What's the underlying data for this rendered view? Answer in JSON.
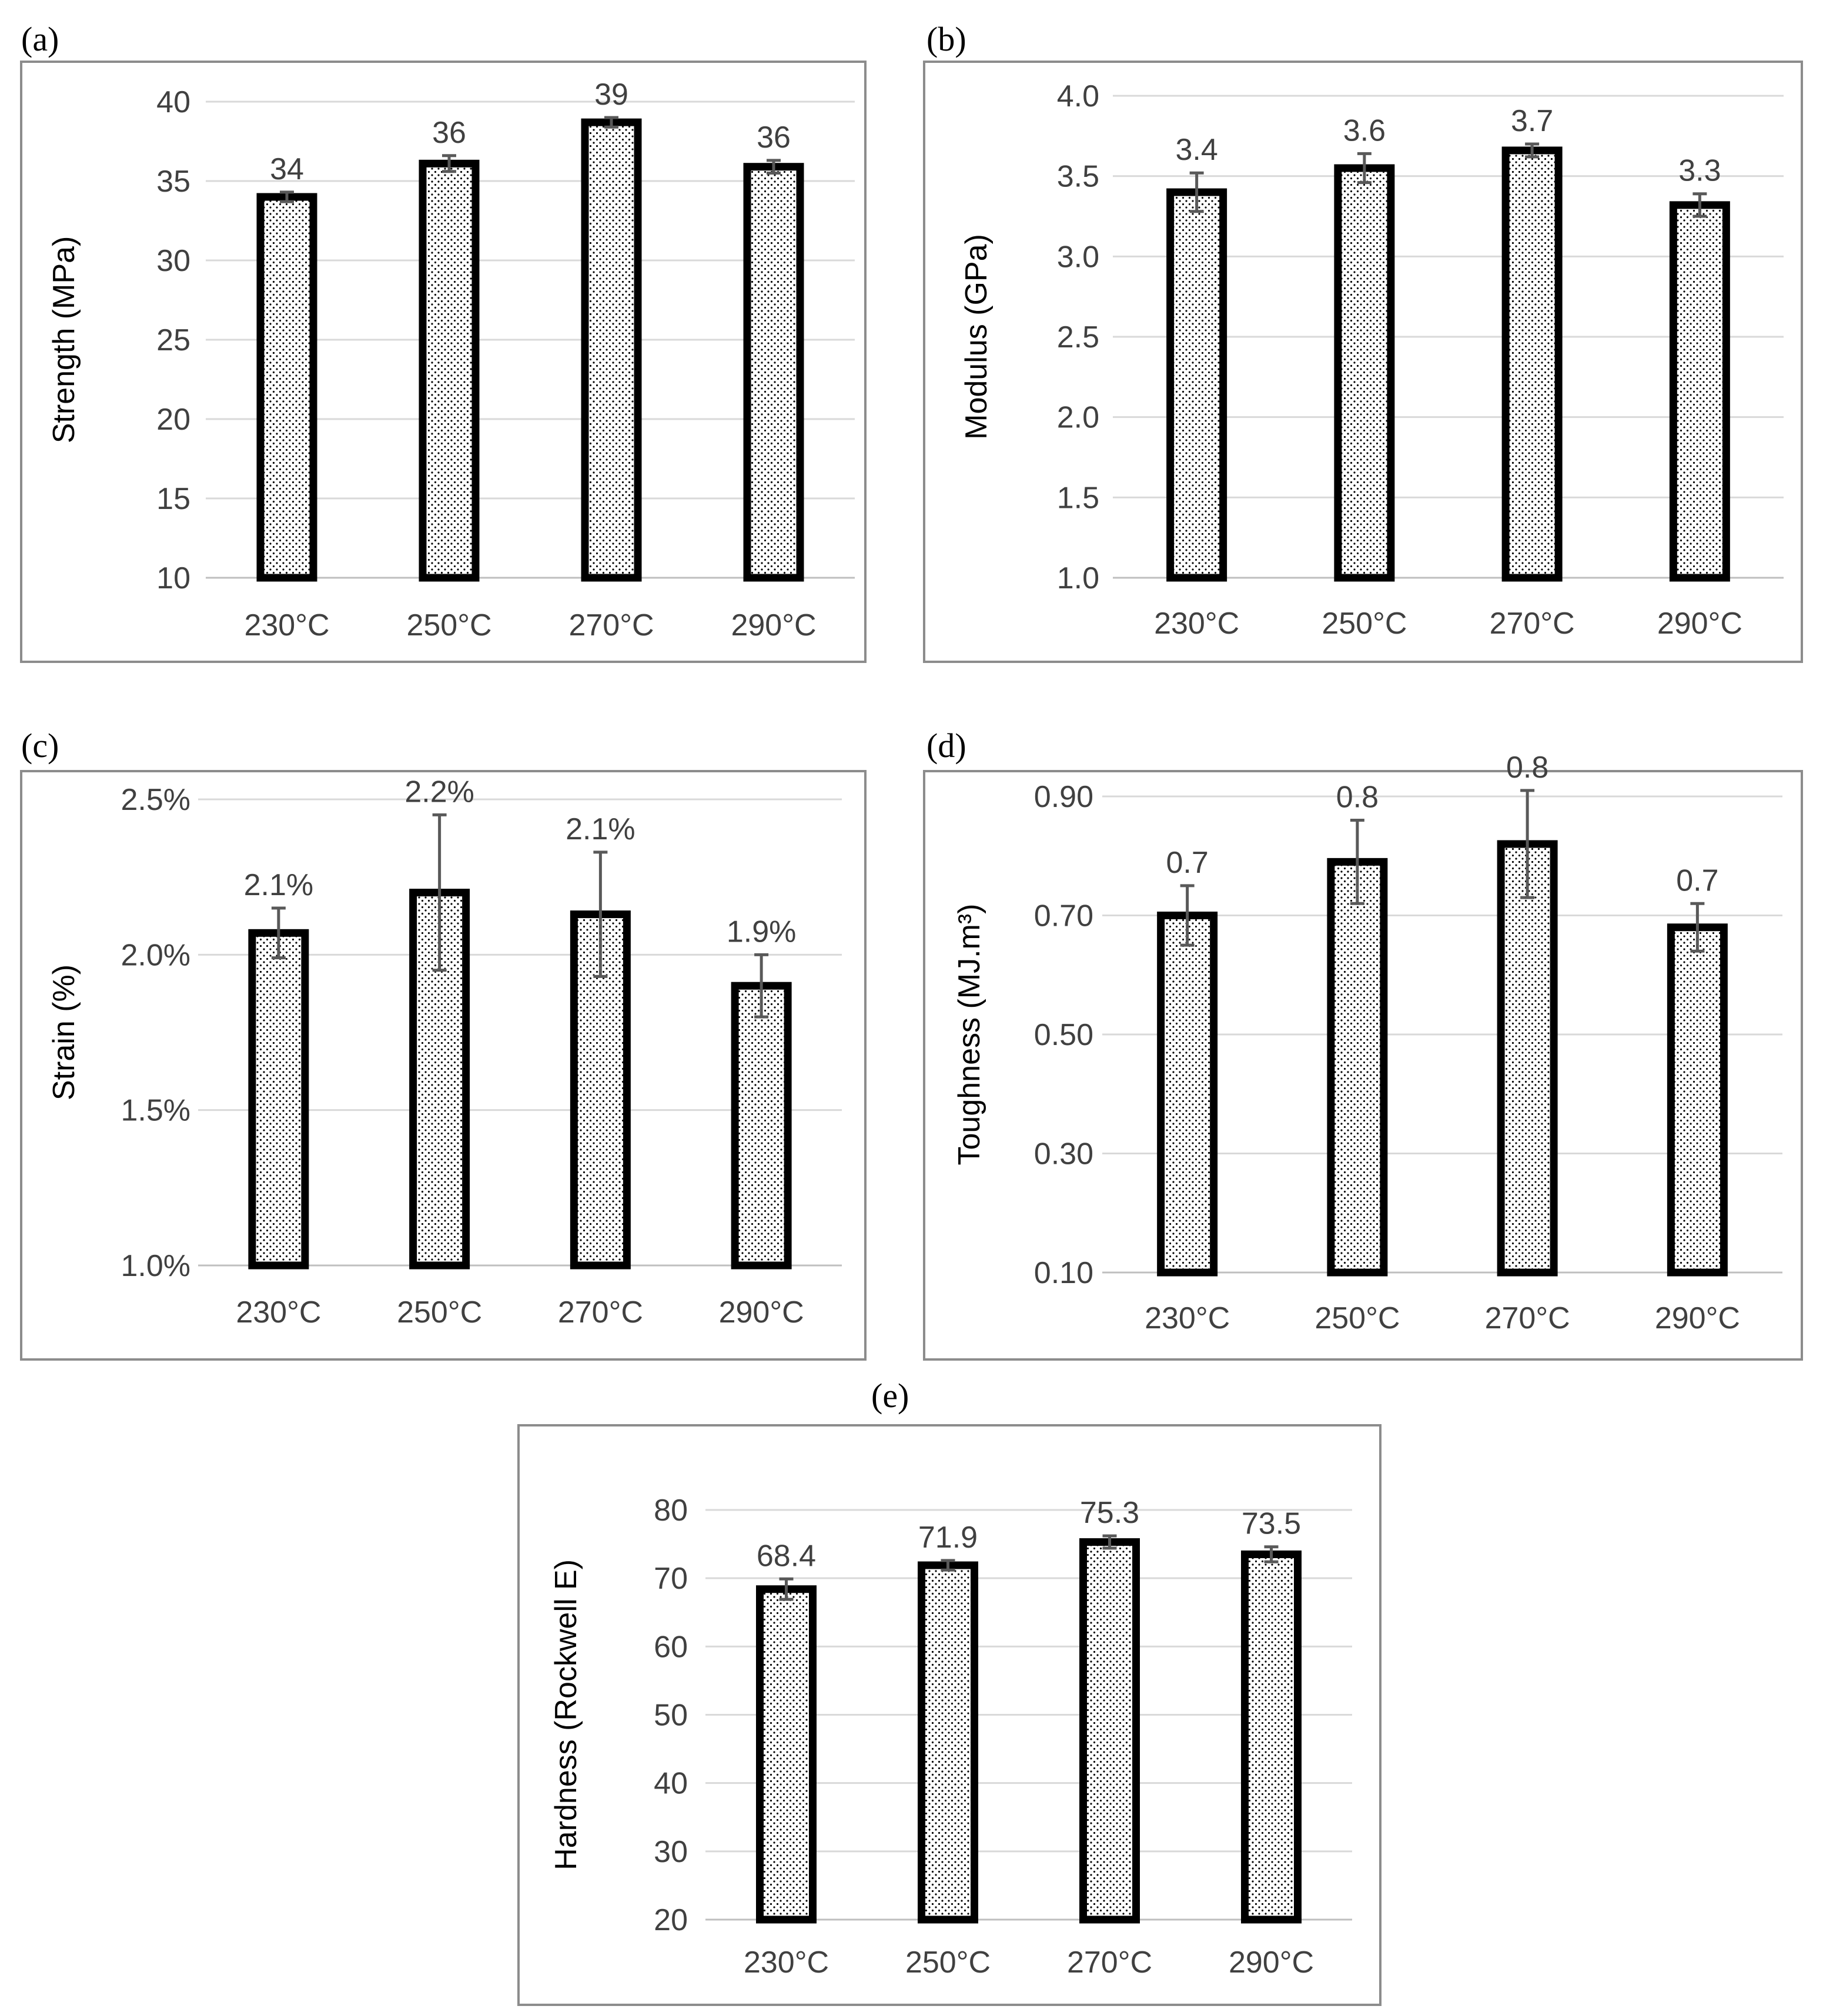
{
  "colors": {
    "bar_stroke": "#000000",
    "dot_fill": "#000000",
    "grid": "#d9d9d9",
    "error_bar": "#595959",
    "frame": "#8c8c8c"
  },
  "chart_data": [
    {
      "panel": "(a)",
      "type": "bar",
      "title": "",
      "xlabel": "",
      "ylabel": "Strength (MPa)",
      "categories": [
        "230°C",
        "250°C",
        "270°C",
        "290°C"
      ],
      "values": [
        34.0,
        36.1,
        38.7,
        35.9
      ],
      "errors": [
        0.3,
        0.5,
        0.3,
        0.4
      ],
      "data_labels": [
        "34",
        "36",
        "39",
        "36"
      ],
      "ylim": [
        10,
        40
      ],
      "yticks": [
        10,
        15,
        20,
        25,
        30,
        35,
        40
      ],
      "ytick_labels": [
        "10",
        "15",
        "20",
        "25",
        "30",
        "35",
        "40"
      ],
      "grid": true
    },
    {
      "panel": "(b)",
      "type": "bar",
      "title": "",
      "xlabel": "",
      "ylabel": "Modulus (GPa)",
      "categories": [
        "230°C",
        "250°C",
        "270°C",
        "290°C"
      ],
      "values": [
        3.4,
        3.55,
        3.66,
        3.32
      ],
      "errors": [
        0.12,
        0.09,
        0.04,
        0.07
      ],
      "data_labels": [
        "3.4",
        "3.6",
        "3.7",
        "3.3"
      ],
      "ylim": [
        1.0,
        4.0
      ],
      "yticks": [
        1.0,
        1.5,
        2.0,
        2.5,
        3.0,
        3.5,
        4.0
      ],
      "ytick_labels": [
        "1.0",
        "1.5",
        "2.0",
        "2.5",
        "3.0",
        "3.5",
        "4.0"
      ],
      "grid": true
    },
    {
      "panel": "(c)",
      "type": "bar",
      "title": "",
      "xlabel": "",
      "ylabel": "Strain (%)",
      "categories": [
        "230°C",
        "250°C",
        "270°C",
        "290°C"
      ],
      "values": [
        2.07,
        2.2,
        2.13,
        1.9
      ],
      "errors": [
        0.08,
        0.25,
        0.2,
        0.1
      ],
      "data_labels": [
        "2.1%",
        "2.2%",
        "2.1%",
        "1.9%"
      ],
      "ylim": [
        1.0,
        2.5
      ],
      "yticks": [
        1.0,
        1.5,
        2.0,
        2.5
      ],
      "ytick_labels": [
        "1.0%",
        "1.5%",
        "2.0%",
        "2.5%"
      ],
      "grid": true
    },
    {
      "panel": "(d)",
      "type": "bar",
      "title": "",
      "xlabel": "",
      "ylabel": "Toughness (MJ.m³)",
      "categories": [
        "230°C",
        "250°C",
        "270°C",
        "290°C"
      ],
      "values": [
        0.7,
        0.79,
        0.82,
        0.68
      ],
      "errors": [
        0.05,
        0.07,
        0.09,
        0.04
      ],
      "data_labels": [
        "0.7",
        "0.8",
        "0.8",
        "0.7"
      ],
      "ylim": [
        0.1,
        0.9
      ],
      "yticks": [
        0.1,
        0.3,
        0.5,
        0.7,
        0.9
      ],
      "ytick_labels": [
        "0.10",
        "0.30",
        "0.50",
        "0.70",
        "0.90"
      ],
      "grid": true
    },
    {
      "panel": "(e)",
      "type": "bar",
      "title": "",
      "xlabel": "",
      "ylabel": "Hardness (Rockwell E)",
      "categories": [
        "230°C",
        "250°C",
        "270°C",
        "290°C"
      ],
      "values": [
        68.4,
        71.9,
        75.3,
        73.5
      ],
      "errors": [
        1.5,
        0.7,
        0.9,
        1.1
      ],
      "data_labels": [
        "68.4",
        "71.9",
        "75.3",
        "73.5"
      ],
      "ylim": [
        20,
        80
      ],
      "yticks": [
        20,
        30,
        40,
        50,
        60,
        70,
        80
      ],
      "ytick_labels": [
        "20",
        "30",
        "40",
        "50",
        "60",
        "70",
        "80"
      ],
      "grid": true
    }
  ]
}
